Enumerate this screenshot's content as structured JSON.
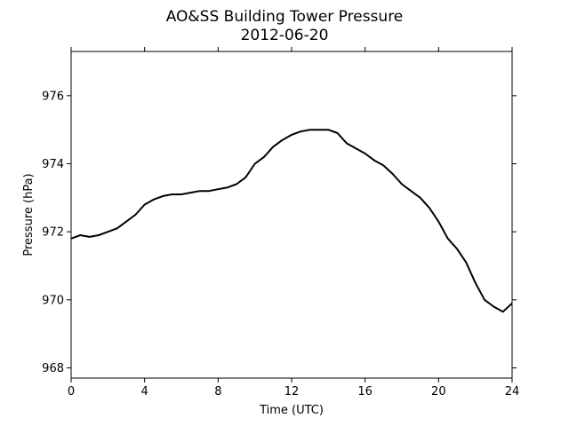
{
  "chart_data": {
    "type": "line",
    "title": "AO&SS Building Tower Pressure",
    "subtitle": "2012-06-20",
    "xlabel": "Time (UTC)",
    "ylabel": "Pressure (hPa)",
    "xlim": [
      0,
      24
    ],
    "ylim": [
      967.7,
      977.3
    ],
    "xticks": [
      0,
      4,
      8,
      12,
      16,
      20,
      24
    ],
    "yticks": [
      968,
      970,
      972,
      974,
      976
    ],
    "grid": false,
    "legend": "none",
    "line_color": "#000000",
    "series": [
      {
        "x": [
          0,
          0.5,
          1,
          1.5,
          2,
          2.5,
          3,
          3.5,
          4,
          4.5,
          5,
          5.5,
          6,
          6.5,
          7,
          7.5,
          8,
          8.5,
          9,
          9.5,
          10,
          10.5,
          11,
          11.5,
          12,
          12.5,
          13,
          13.5,
          14,
          14.5,
          15,
          15.5,
          16,
          16.5,
          17,
          17.5,
          18,
          18.5,
          19,
          19.5,
          20,
          20.5,
          21,
          21.5,
          22,
          22.5,
          23,
          23.5,
          24
        ],
        "y": [
          971.8,
          971.9,
          971.85,
          971.9,
          972.0,
          972.1,
          972.3,
          972.5,
          972.8,
          972.95,
          973.05,
          973.1,
          973.1,
          973.15,
          973.2,
          973.2,
          973.25,
          973.3,
          973.4,
          973.6,
          974.0,
          974.2,
          974.5,
          974.7,
          974.85,
          974.95,
          975.0,
          975.0,
          975.0,
          974.9,
          974.6,
          974.45,
          974.3,
          974.1,
          973.95,
          973.7,
          973.4,
          973.2,
          973.0,
          972.7,
          972.3,
          971.8,
          971.5,
          971.1,
          970.5,
          970.0,
          969.8,
          969.65,
          969.9
        ]
      }
    ]
  }
}
